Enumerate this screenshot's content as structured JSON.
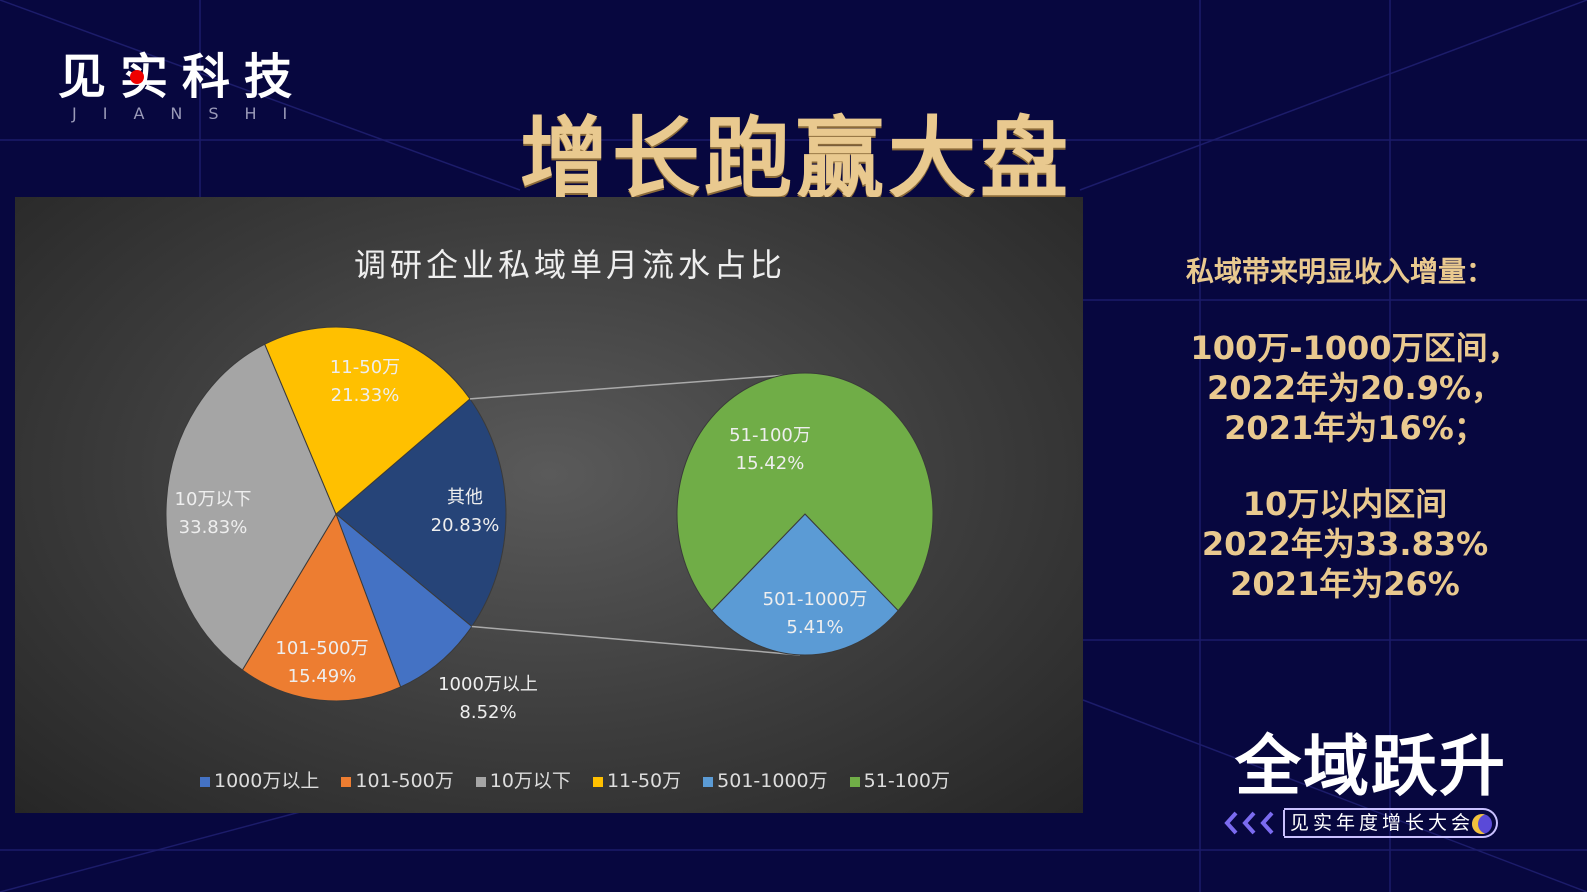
{
  "logo": {
    "name": "见实科技",
    "sub": "JIANSHI"
  },
  "title": "增长跑赢大盘",
  "side": {
    "heading": "私域带来明显收入增量：",
    "block1": [
      "100万-1000万区间，",
      "2022年为20.9%，",
      "2021年为16%；"
    ],
    "block2": [
      "10万以内区间",
      "2022年为33.83%",
      "2021年为26%"
    ]
  },
  "brand": {
    "name": "全域跃升",
    "sub": "见实年度增长大会"
  },
  "colors": {
    "bg": "#07073f",
    "gold": "#e9c98f"
  },
  "chart_data": {
    "type": "pie",
    "title": "调研企业私域单月流水占比",
    "main": [
      {
        "label": "其他",
        "value": 20.83,
        "pct": "20.83%",
        "color": "#264478"
      },
      {
        "label": "1000万以上",
        "value": 8.52,
        "pct": "8.52%",
        "color": "#4472c4"
      },
      {
        "label": "101-500万",
        "value": 15.49,
        "pct": "15.49%",
        "color": "#ed7d31"
      },
      {
        "label": "10万以下",
        "value": 33.83,
        "pct": "33.83%",
        "color": "#a5a5a5"
      },
      {
        "label": "11-50万",
        "value": 21.33,
        "pct": "21.33%",
        "color": "#ffc000"
      }
    ],
    "secondary": [
      {
        "label": "501-1000万",
        "value": 5.41,
        "pct": "5.41%",
        "color": "#5b9bd5"
      },
      {
        "label": "51-100万",
        "value": 15.42,
        "pct": "15.42%",
        "color": "#70ad47"
      }
    ],
    "legend": [
      {
        "label": "1000万以上",
        "color": "#4472c4"
      },
      {
        "label": "101-500万",
        "color": "#ed7d31"
      },
      {
        "label": "10万以下",
        "color": "#a5a5a5"
      },
      {
        "label": "11-50万",
        "color": "#ffc000"
      },
      {
        "label": "501-1000万",
        "color": "#5b9bd5"
      },
      {
        "label": "51-100万",
        "color": "#70ad47"
      }
    ],
    "legend_position": "bottom"
  }
}
